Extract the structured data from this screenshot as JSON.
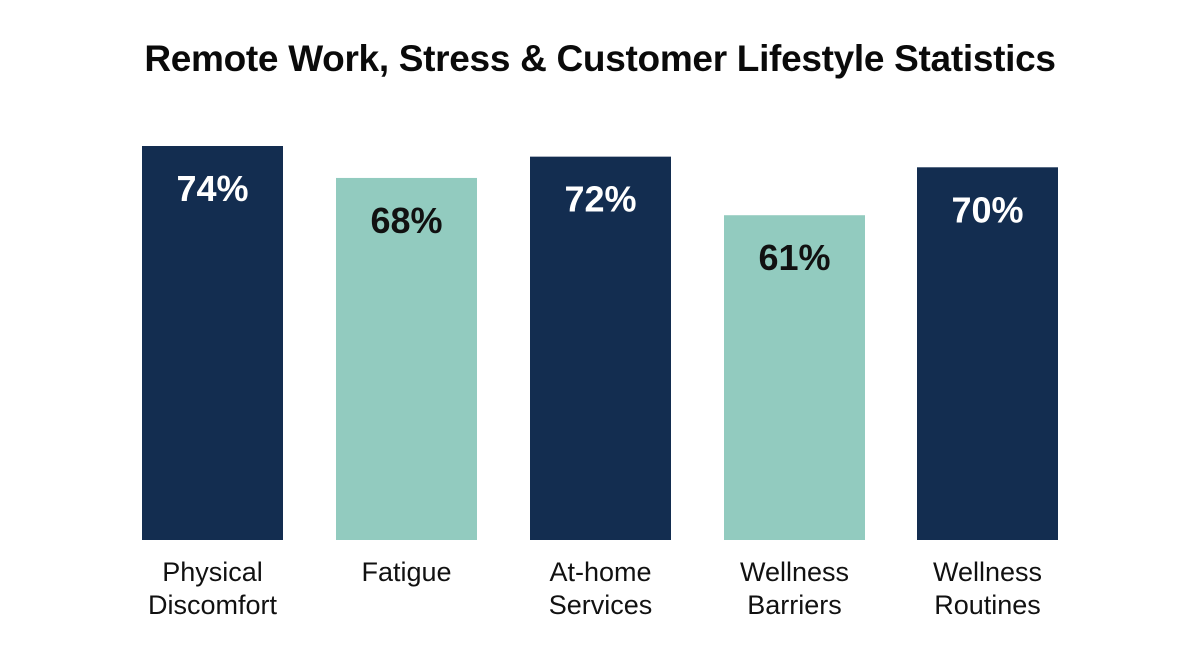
{
  "chart_data": {
    "type": "bar",
    "title": "Remote Work, Stress & Customer Lifestyle Statistics",
    "categories": [
      [
        "Physical",
        "Discomfort"
      ],
      [
        "Fatigue"
      ],
      [
        "At-home",
        "Services"
      ],
      [
        "Wellness",
        "Barriers"
      ],
      [
        "Wellness",
        "Routines"
      ]
    ],
    "values": [
      74,
      68,
      72,
      61,
      70
    ],
    "value_labels": [
      "74%",
      "68%",
      "72%",
      "61%",
      "70%"
    ],
    "bar_colors": [
      "#132d50",
      "#92cbbf",
      "#132d50",
      "#92cbbf",
      "#132d50"
    ],
    "label_colors": [
      "#ffffff",
      "#111111",
      "#ffffff",
      "#111111",
      "#ffffff"
    ],
    "xlabel": "",
    "ylabel": "",
    "grid": false,
    "legend": "none"
  }
}
